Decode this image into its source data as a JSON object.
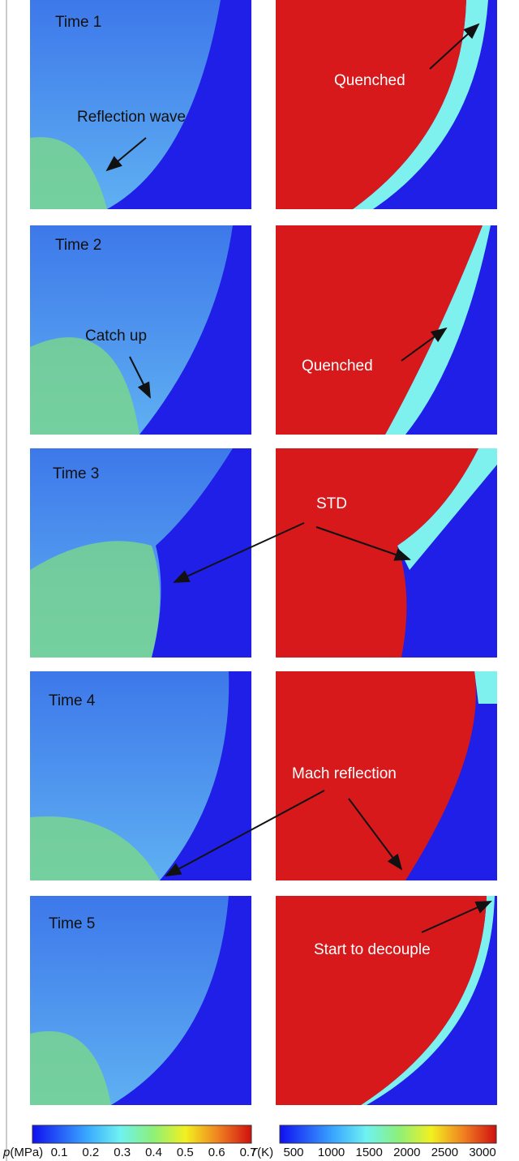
{
  "panels": [
    {
      "label": "Time 1"
    },
    {
      "label": "Time 2"
    },
    {
      "label": "Time 3"
    },
    {
      "label": "Time 4"
    },
    {
      "label": "Time 5"
    }
  ],
  "annotations": [
    {
      "text": "Reflection wave"
    },
    {
      "text": "Quenched"
    },
    {
      "text": "Catch up"
    },
    {
      "text": "Quenched"
    },
    {
      "text": "STD"
    },
    {
      "text": "Mach reflection"
    },
    {
      "text": "Start to decouple"
    }
  ],
  "colorbars": [
    {
      "symbol": "p",
      "unit": "(MPa)",
      "ticks": [
        0.1,
        0.2,
        0.3,
        0.4,
        0.5,
        0.6,
        0.7
      ]
    },
    {
      "symbol": "T",
      "unit": "(K)",
      "ticks": [
        500,
        1000,
        1500,
        2000,
        2500,
        3000
      ]
    }
  ]
}
